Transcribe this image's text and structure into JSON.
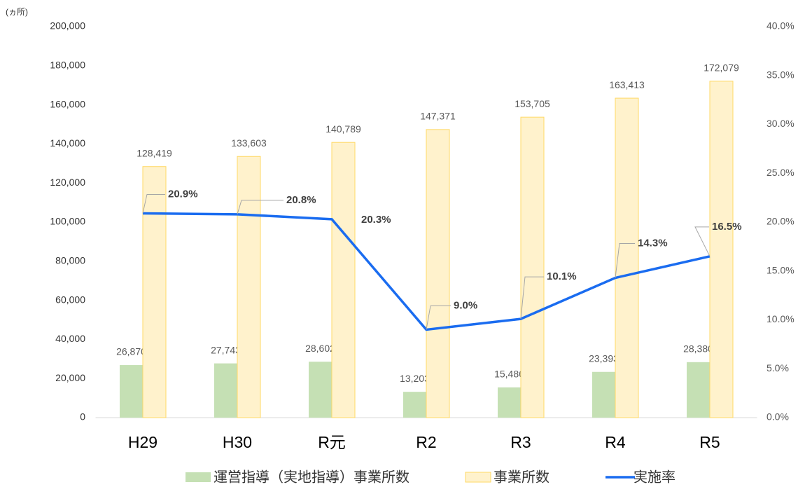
{
  "chart_data": {
    "type": "bar",
    "y_label": "(ヵ所)",
    "categories": [
      "H29",
      "H30",
      "R元",
      "R2",
      "R3",
      "R4",
      "R5"
    ],
    "series": [
      {
        "name": "運営指導（実地指導）事業所数",
        "type": "bar",
        "color": "#c5e0b4",
        "values": [
          26870,
          27743,
          28602,
          13203,
          15486,
          23393,
          28380
        ],
        "value_labels": [
          "26,870",
          "27,743",
          "28,602",
          "13,203",
          "15,486",
          "23,393",
          "28,380"
        ]
      },
      {
        "name": "事業所数",
        "type": "bar",
        "color": "#fff2cc",
        "edge_color": "#ffd966",
        "values": [
          128419,
          133603,
          140789,
          147371,
          153705,
          163413,
          172079
        ],
        "value_labels": [
          "128,419",
          "133,603",
          "140,789",
          "147,371",
          "153,705",
          "163,413",
          "172,079"
        ]
      },
      {
        "name": "実施率",
        "type": "line",
        "axis": "y2",
        "color": "#1a6cf0",
        "values": [
          20.9,
          20.8,
          20.3,
          9.0,
          10.1,
          14.3,
          16.5
        ],
        "value_labels": [
          "20.9%",
          "20.8%",
          "20.3%",
          "9.0%",
          "10.1%",
          "14.3%",
          "16.5%"
        ]
      }
    ],
    "ylim": [
      0,
      200000
    ],
    "yticks": [
      0,
      {
        "value": 20000,
        "label": "20,000"
      },
      {
        "value": 40000,
        "label": "40,000"
      },
      {
        "value": 60000,
        "label": "60,000"
      },
      {
        "value": 80000,
        "label": "80,000"
      },
      {
        "value": 100000,
        "label": "100,000"
      },
      {
        "value": 120000,
        "label": "120,000"
      },
      {
        "value": 140000,
        "label": "140,000"
      },
      {
        "value": 160000,
        "label": "160,000"
      },
      {
        "value": 180000,
        "label": "180,000"
      },
      {
        "value": 200000,
        "label": "200,000"
      }
    ],
    "y2lim": [
      0,
      40
    ],
    "y2ticks": [
      {
        "value": 0,
        "label": "0.0%"
      },
      {
        "value": 5,
        "label": "5.0%"
      },
      {
        "value": 10,
        "label": "10.0%"
      },
      {
        "value": 15,
        "label": "15.0%"
      },
      {
        "value": 20,
        "label": "20.0%"
      },
      {
        "value": 25,
        "label": "25.0%"
      },
      {
        "value": 30,
        "label": "30.0%"
      },
      {
        "value": 35,
        "label": "35.0%"
      },
      {
        "value": 40,
        "label": "40.0%"
      }
    ],
    "grid": false,
    "legend": "bottom"
  }
}
